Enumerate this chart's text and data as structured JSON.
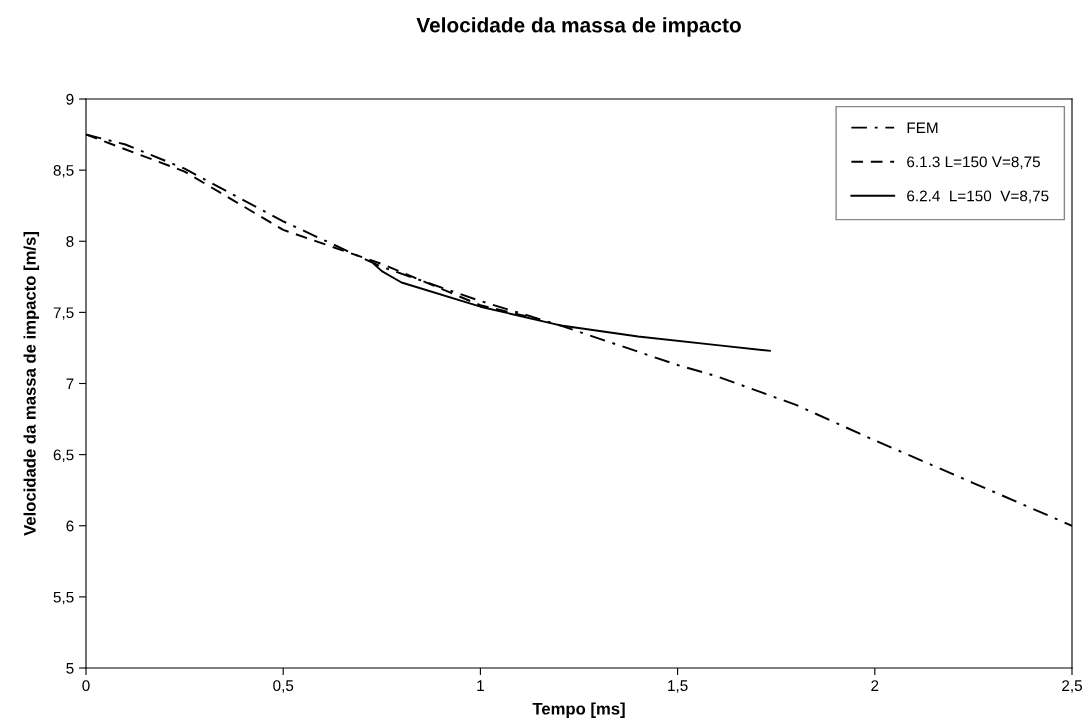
{
  "chart_data": {
    "type": "line",
    "title": "Velocidade da massa de impacto",
    "xlabel": "Tempo [ms]",
    "ylabel": "Velocidade da massa de impacto [m/s]",
    "xlim": [
      0,
      2.5
    ],
    "xticks": [
      {
        "value": 0,
        "label": "0"
      },
      {
        "value": 0.5,
        "label": "0,5"
      },
      {
        "value": 1,
        "label": "1"
      },
      {
        "value": 1.5,
        "label": "1,5"
      },
      {
        "value": 2,
        "label": "2"
      },
      {
        "value": 2.5,
        "label": "2,5"
      }
    ],
    "ylim": [
      5,
      9
    ],
    "yticks": [
      {
        "value": 5,
        "label": "5"
      },
      {
        "value": 5.5,
        "label": "5,5"
      },
      {
        "value": 6,
        "label": "6"
      },
      {
        "value": 6.5,
        "label": "6,5"
      },
      {
        "value": 7,
        "label": "7"
      },
      {
        "value": 7.5,
        "label": "7,5"
      },
      {
        "value": 8,
        "label": "8"
      },
      {
        "value": 8.5,
        "label": "8,5"
      },
      {
        "value": 9,
        "label": "9"
      }
    ],
    "grid": false,
    "legend": "top right",
    "marker": "none",
    "series": [
      {
        "name": "FEM",
        "color": "#000000",
        "line_style": "dashdot",
        "x": [
          0,
          0.1,
          0.25,
          0.5,
          0.75,
          1.0,
          1.2,
          1.5,
          1.6,
          1.8,
          2.0,
          2.25,
          2.5
        ],
        "values": [
          8.75,
          8.68,
          8.51,
          8.14,
          7.82,
          7.58,
          7.41,
          7.13,
          7.05,
          6.85,
          6.6,
          6.3,
          6.0
        ]
      },
      {
        "name": "6.1.3 L=150 V=8,75",
        "color": "#000000",
        "line_style": "dashed",
        "x": [
          0,
          0.25,
          0.5,
          0.75,
          1.0,
          1.15
        ],
        "values": [
          8.75,
          8.49,
          8.08,
          7.84,
          7.55,
          7.45
        ]
      },
      {
        "name": "6.2.4  L=150  V=8,75",
        "color": "#000000",
        "line_style": "solid",
        "x": [
          0.73,
          0.75,
          0.8,
          1.0,
          1.2,
          1.4,
          1.6,
          1.734
        ],
        "values": [
          7.84,
          7.79,
          7.71,
          7.54,
          7.41,
          7.33,
          7.27,
          7.23
        ]
      }
    ]
  }
}
